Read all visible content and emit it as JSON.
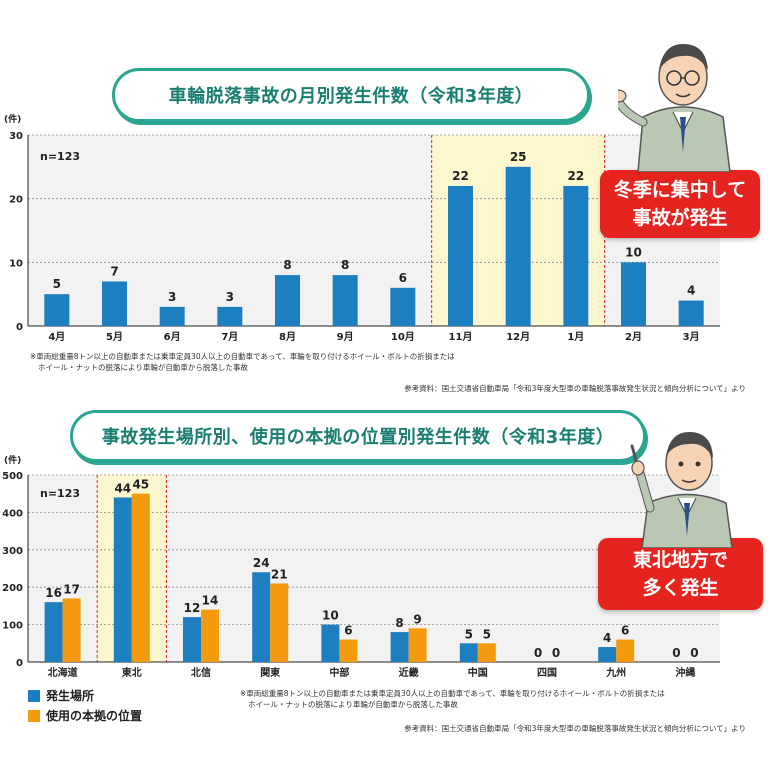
{
  "chart1": {
    "title": "車輪脱落事故の月別発生件数（令和3年度）",
    "unit": "(件)",
    "n_label": "n=123",
    "callout": [
      "冬季に集中して",
      "事故が発生"
    ],
    "note": [
      "※車両総重量8トン以上の自動車または乗車定員30人以上の自動車であって、車輪を取り付けるホイール・ボルトの折損または",
      "ホイール・ナットの脱落により車輪が自動車から脱落した事故"
    ],
    "reference": "参考資料：国土交通省自動車局「令和3年度大型車の車輪脱落事故発生状況と傾向分析について」より"
  },
  "chart2": {
    "title": "事故発生場所別、使用の本拠の位置別発生件数（令和3年度）",
    "unit": "(件)",
    "n_label": "n=123",
    "callout": [
      "東北地方で",
      "多く発生"
    ],
    "note": [
      "※車両総重量8トン以上の自動車または乗車定員30人以上の自動車であって、車輪を取り付けるホイール・ボルトの折損または",
      "ホイール・ナットの脱落により車輪が自動車から脱落した事故"
    ],
    "reference": "参考資料：国土交通省自動車局「令和3年度大型車の車輪脱落事故発生状況と傾向分析について」より",
    "legend": [
      "発生場所",
      "使用の本拠の位置"
    ]
  },
  "colors": {
    "blue": "#1d7fbf",
    "orange": "#f39a0d",
    "teal": "#2aa58f",
    "red": "#e52420",
    "highlight": "#fdf7cf",
    "plotbg": "#f2f2f2"
  },
  "chart_data": [
    {
      "type": "bar",
      "title": "車輪脱落事故の月別発生件数（令和3年度）",
      "ylabel": "(件)",
      "categories": [
        "4月",
        "5月",
        "6月",
        "7月",
        "8月",
        "9月",
        "10月",
        "11月",
        "12月",
        "1月",
        "2月",
        "3月"
      ],
      "values": [
        5,
        7,
        3,
        3,
        8,
        8,
        6,
        22,
        25,
        22,
        10,
        4
      ],
      "yticks": [
        0,
        10,
        20,
        30
      ],
      "ylim": [
        0,
        30
      ],
      "highlight": [
        "11月",
        "12月",
        "1月"
      ],
      "color": "#1d7fbf"
    },
    {
      "type": "bar",
      "title": "事故発生場所別、使用の本拠の位置別発生件数（令和3年度）",
      "ylabel": "(件)",
      "categories": [
        "北海道",
        "東北",
        "北信",
        "関東",
        "中部",
        "近畿",
        "中国",
        "四国",
        "九州",
        "沖縄"
      ],
      "series": [
        {
          "name": "発生場所",
          "values": [
            16,
            44,
            12,
            24,
            10,
            8,
            5,
            0,
            4,
            0
          ],
          "color": "#1d7fbf"
        },
        {
          "name": "使用の本拠の位置",
          "values": [
            17,
            45,
            14,
            21,
            6,
            9,
            5,
            0,
            6,
            0
          ],
          "color": "#f39a0d"
        }
      ],
      "yticks": [
        0,
        100,
        200,
        300,
        400,
        500
      ],
      "ylim": [
        0,
        500
      ],
      "highlight": [
        "東北"
      ]
    }
  ]
}
